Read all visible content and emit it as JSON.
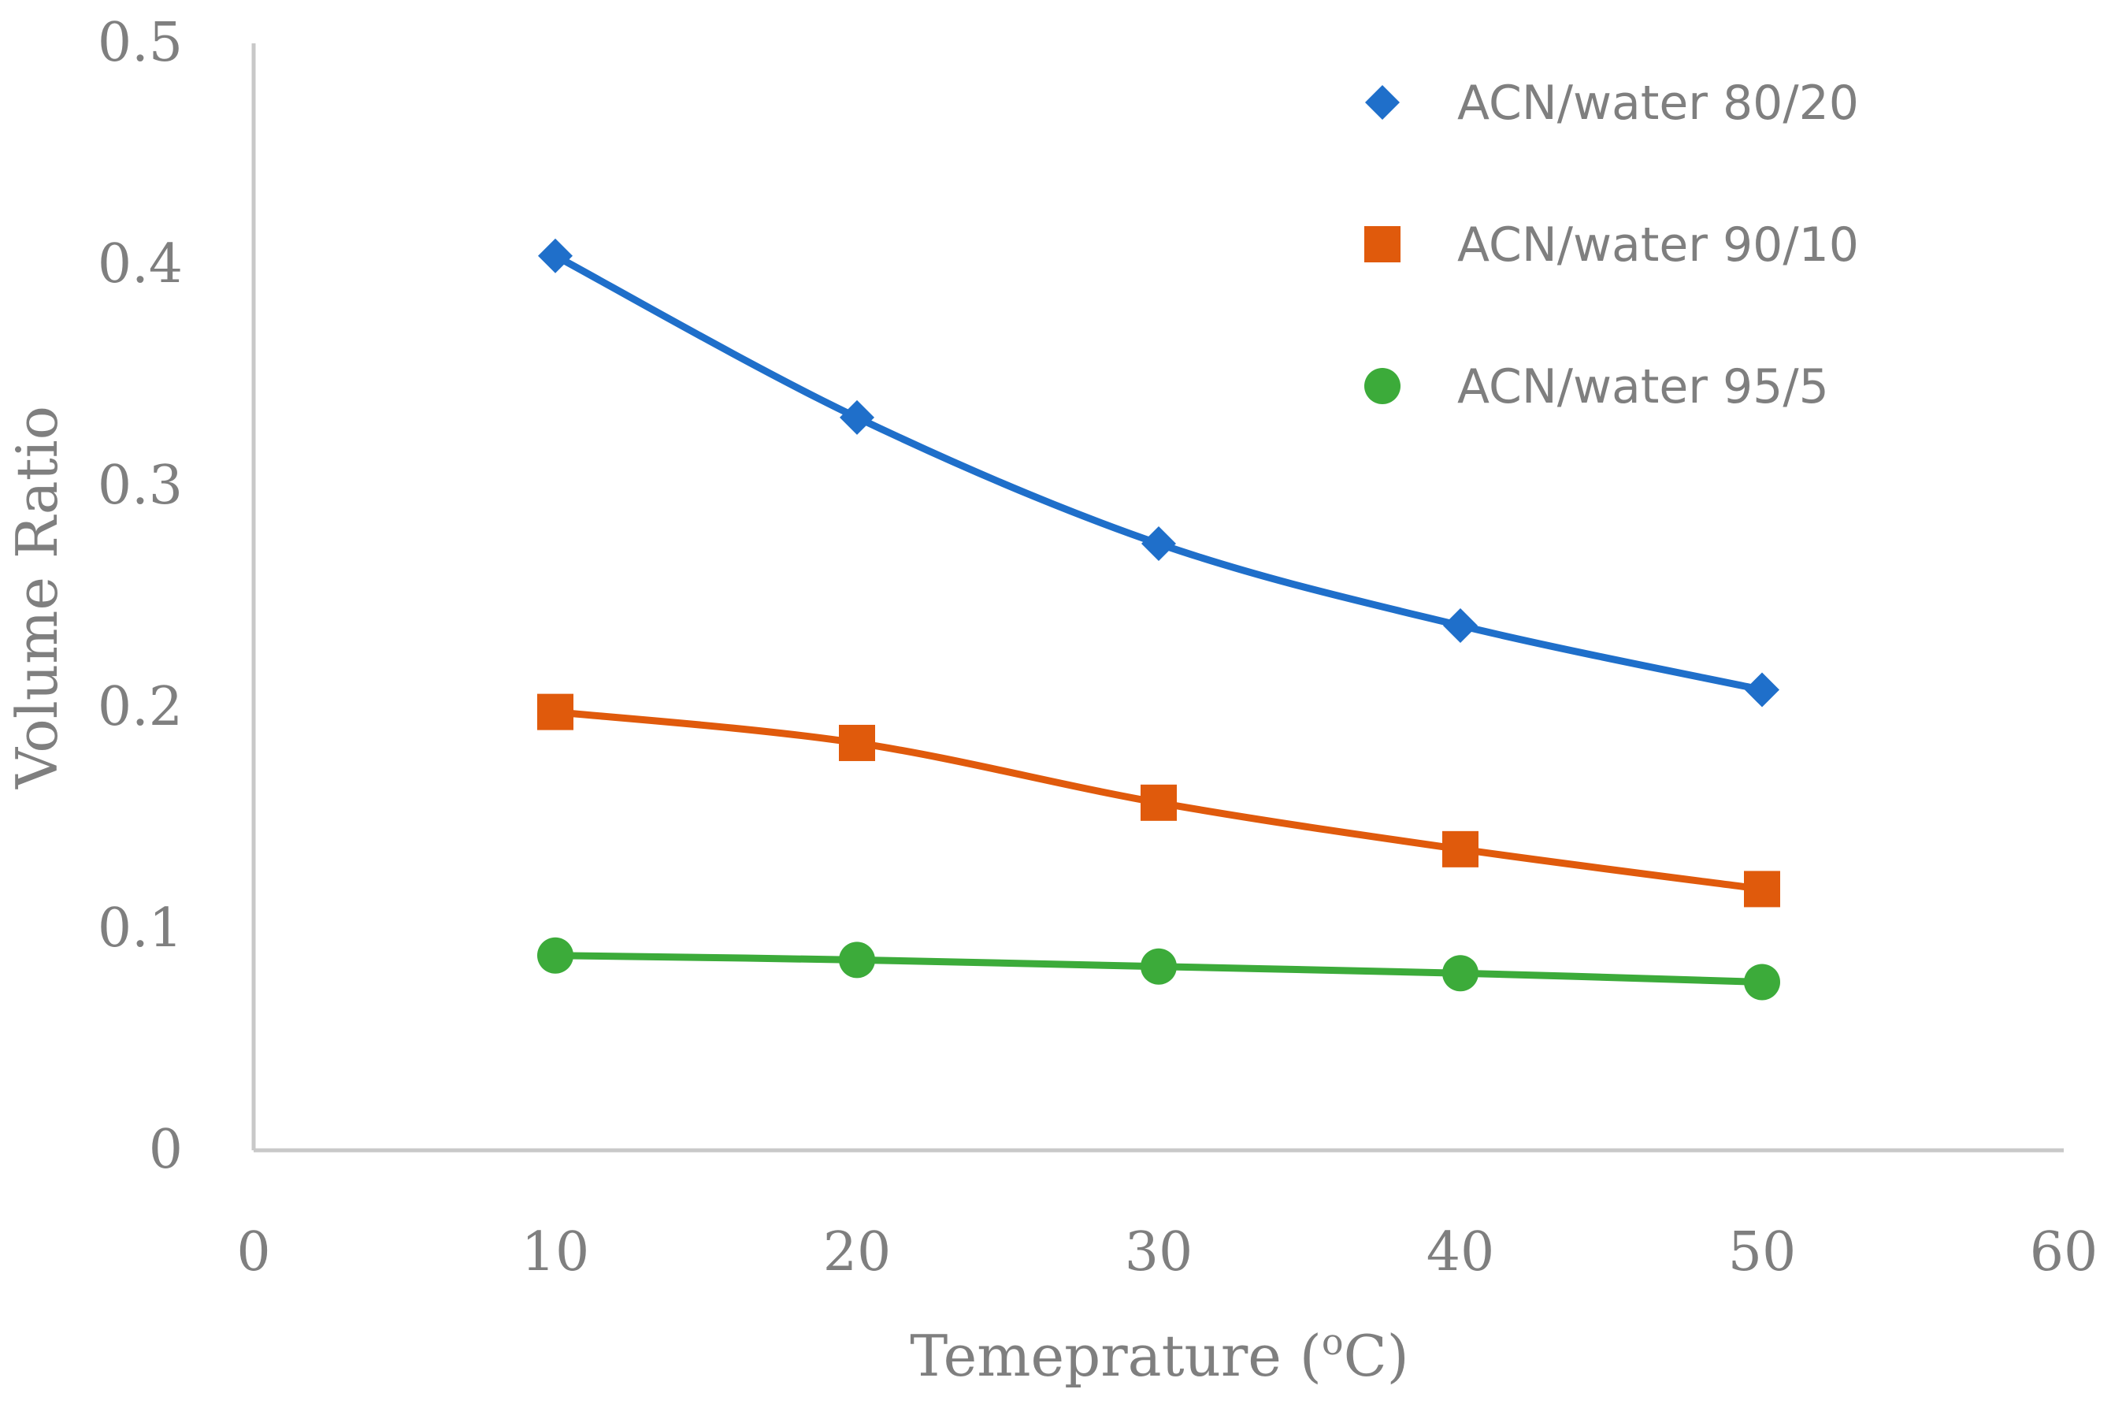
{
  "chart_data": {
    "type": "line",
    "title": "",
    "xlabel": "Temeprature (",
    "xlabel_sup": "o",
    "xlabel_tail": "C)",
    "ylabel": "Volume Ratio",
    "xlim": [
      0,
      60
    ],
    "ylim": [
      0,
      0.5
    ],
    "x_ticks": [
      0,
      10,
      20,
      30,
      40,
      50,
      60
    ],
    "y_ticks": [
      0,
      0.1,
      0.2,
      0.3,
      0.4,
      0.5
    ],
    "x_tick_labels": [
      "0",
      "10",
      "20",
      "30",
      "40",
      "50",
      "60"
    ],
    "y_tick_labels": [
      "0",
      "0.1",
      "0.2",
      "0.3",
      "0.4",
      "0.5"
    ],
    "grid": false,
    "legend_position": "top-right",
    "series": [
      {
        "name": "ACN/water 80/20",
        "marker": "diamond",
        "color": "#1f6fca",
        "x": [
          10,
          20,
          30,
          40,
          50
        ],
        "y": [
          0.404,
          0.331,
          0.274,
          0.237,
          0.208
        ]
      },
      {
        "name": "ACN/water 90/10",
        "marker": "square",
        "color": "#e05a0c",
        "x": [
          10,
          20,
          30,
          40,
          50
        ],
        "y": [
          0.198,
          0.184,
          0.157,
          0.136,
          0.118
        ]
      },
      {
        "name": "ACN/water 95/5",
        "marker": "circle",
        "color": "#3cab3a",
        "x": [
          10,
          20,
          30,
          40,
          50
        ],
        "y": [
          0.088,
          0.086,
          0.083,
          0.08,
          0.076
        ]
      }
    ]
  }
}
